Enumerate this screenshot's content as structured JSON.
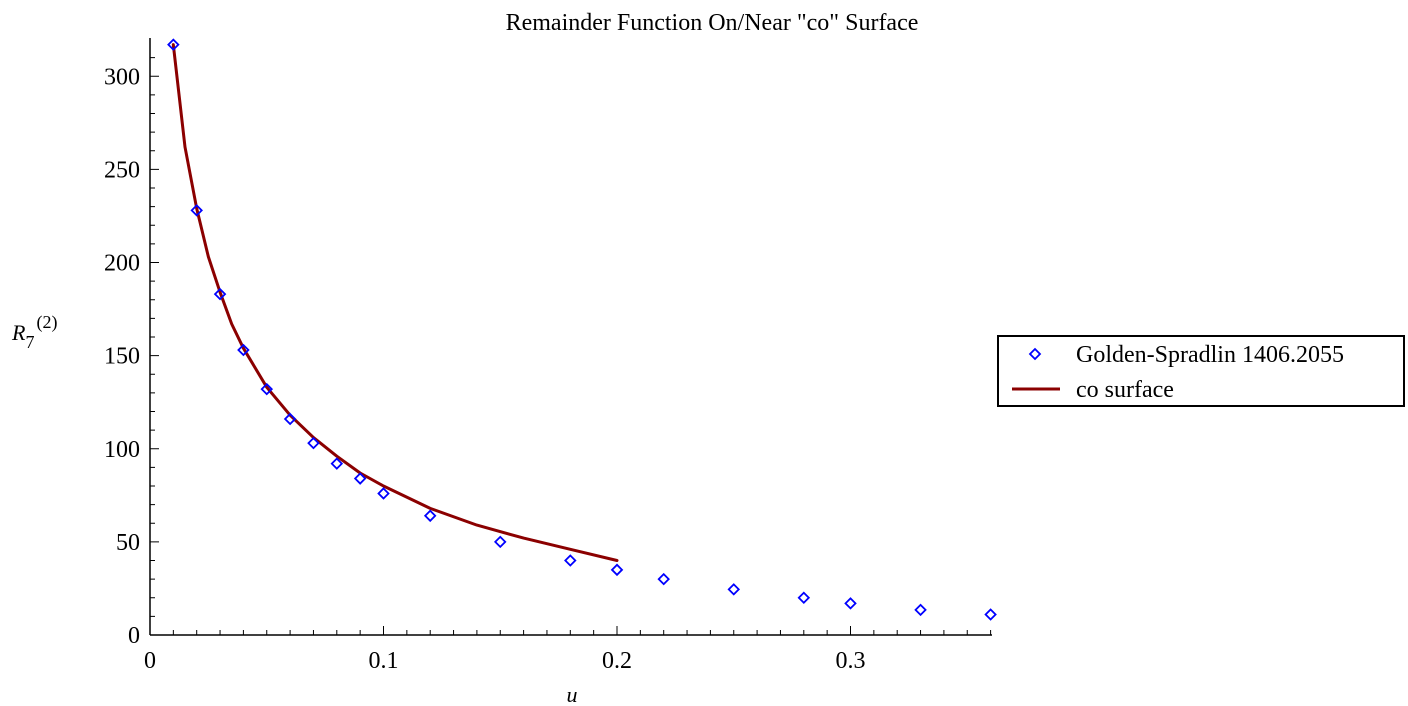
{
  "chart_data": {
    "type": "scatter",
    "title": "Remainder Function On/Near \"co\" Surface",
    "xlabel": "u",
    "ylabel": {
      "base": "R",
      "subscript": "7",
      "superscript": "(2)"
    },
    "xlim": [
      0,
      0.36
    ],
    "ylim": [
      0,
      320
    ],
    "x_ticks": [
      0,
      0.1,
      0.2,
      0.3
    ],
    "x_tick_labels": [
      "0",
      "0.1",
      "0.2",
      "0.3"
    ],
    "x_minor_step": 0.01,
    "y_ticks": [
      0,
      50,
      100,
      150,
      200,
      250,
      300
    ],
    "y_tick_labels": [
      "0",
      "50",
      "100",
      "150",
      "200",
      "250",
      "300"
    ],
    "y_minor_step": 10,
    "grid": false,
    "legend_position": "right",
    "series": [
      {
        "name": "Golden-Spradlin 1406.2055",
        "kind": "points",
        "marker": "diamond",
        "color": "#0000ff",
        "x": [
          0.01,
          0.02,
          0.03,
          0.04,
          0.05,
          0.06,
          0.07,
          0.08,
          0.09,
          0.1,
          0.12,
          0.15,
          0.18,
          0.2,
          0.22,
          0.25,
          0.28,
          0.3,
          0.33,
          0.36
        ],
        "y": [
          317,
          228,
          183,
          153,
          132,
          116,
          103,
          92,
          84,
          76,
          64,
          50,
          40,
          35,
          30,
          24.5,
          20,
          17,
          13.5,
          11
        ]
      },
      {
        "name": "co surface",
        "kind": "line",
        "color": "#8b0000",
        "x": [
          0.01,
          0.015,
          0.02,
          0.025,
          0.03,
          0.035,
          0.04,
          0.05,
          0.06,
          0.07,
          0.08,
          0.09,
          0.1,
          0.12,
          0.14,
          0.16,
          0.18,
          0.2
        ],
        "y": [
          317,
          262,
          229,
          203,
          184,
          167,
          154,
          133,
          118,
          106,
          96,
          87,
          80,
          68,
          59,
          52,
          46,
          40
        ]
      }
    ]
  }
}
